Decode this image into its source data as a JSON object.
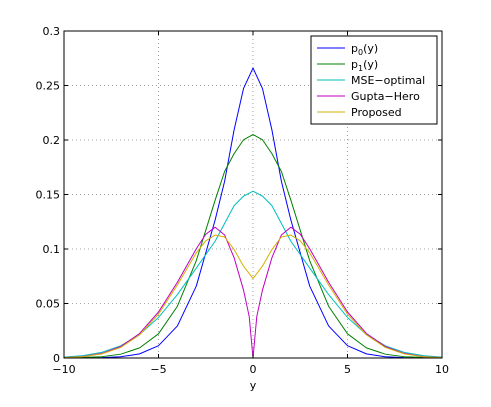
{
  "chart_data": {
    "type": "line",
    "title": "",
    "xlabel": "y",
    "ylabel": "",
    "xlim": [
      -10,
      10
    ],
    "ylim": [
      0,
      0.3
    ],
    "grid": true,
    "grid_style": "dotted",
    "legend_position": "top-right",
    "x_ticks": [
      {
        "value": -10,
        "label": "−10"
      },
      {
        "value": -5,
        "label": "−5"
      },
      {
        "value": 0,
        "label": "0"
      },
      {
        "value": 5,
        "label": "5"
      },
      {
        "value": 10,
        "label": "10"
      }
    ],
    "y_ticks": [
      {
        "value": 0,
        "label": "0"
      },
      {
        "value": 0.05,
        "label": "0.05"
      },
      {
        "value": 0.1,
        "label": "0.1"
      },
      {
        "value": 0.15,
        "label": "0.15"
      },
      {
        "value": 0.2,
        "label": "0.2"
      },
      {
        "value": 0.25,
        "label": "0.25"
      },
      {
        "value": 0.3,
        "label": "0.3"
      }
    ],
    "series": [
      {
        "name": "p0(y)",
        "label_main": "p",
        "label_sub": "0",
        "label_tail": "(y)",
        "color": "#0000ff",
        "x": [
          -10,
          -8,
          -7,
          -6,
          -5,
          -4,
          -3,
          -2,
          -1.5,
          -1,
          -0.5,
          0,
          0.5,
          1,
          1.5,
          2,
          3,
          4,
          5,
          6,
          7,
          8,
          10
        ],
        "y": [
          0,
          0.0003,
          0.0011,
          0.0038,
          0.0113,
          0.0294,
          0.066,
          0.1268,
          0.1623,
          0.2093,
          0.2473,
          0.266,
          0.2473,
          0.2093,
          0.1623,
          0.1268,
          0.066,
          0.0294,
          0.0113,
          0.0038,
          0.0011,
          0.0003,
          0
        ]
      },
      {
        "name": "p1(y)",
        "label_main": "p",
        "label_sub": "1",
        "label_tail": "(y)",
        "color": "#008000",
        "x": [
          -10,
          -8,
          -7,
          -6,
          -5,
          -4,
          -3,
          -2,
          -1.5,
          -1,
          -0.5,
          0,
          0.5,
          1,
          1.5,
          2,
          3,
          4,
          5,
          6,
          7,
          8,
          10
        ],
        "y": [
          0,
          0.0012,
          0.0035,
          0.0093,
          0.0222,
          0.0475,
          0.0893,
          0.145,
          0.1712,
          0.1875,
          0.2002,
          0.205,
          0.2002,
          0.1875,
          0.1712,
          0.145,
          0.0893,
          0.0475,
          0.0222,
          0.0093,
          0.0035,
          0.0012,
          0
        ]
      },
      {
        "name": "MSE−optimal",
        "label_main": "MSE−optimal",
        "label_sub": "",
        "label_tail": "",
        "color": "#00bfbf",
        "x": [
          -10,
          -9,
          -8,
          -7,
          -6,
          -5,
          -4,
          -3,
          -2,
          -1,
          -0.5,
          0,
          0.5,
          1,
          2,
          3,
          4,
          5,
          6,
          7,
          8,
          9,
          10
        ],
        "y": [
          0.0008,
          0.0022,
          0.0052,
          0.0112,
          0.0215,
          0.0372,
          0.0582,
          0.0825,
          0.1072,
          0.1398,
          0.1485,
          0.153,
          0.1485,
          0.1398,
          0.1072,
          0.0825,
          0.0582,
          0.0372,
          0.0215,
          0.0112,
          0.0052,
          0.0022,
          0.0008
        ]
      },
      {
        "name": "Gupta−Hero",
        "label_main": "Gupta−Hero",
        "label_sub": "",
        "label_tail": "",
        "color": "#bf00bf",
        "x": [
          -10,
          -9,
          -8,
          -7,
          -6,
          -5,
          -4,
          -3,
          -2.5,
          -2,
          -1.5,
          -1,
          -0.5,
          -0.2,
          0,
          0.2,
          0.5,
          1,
          1.5,
          2,
          2.5,
          3,
          4,
          5,
          6,
          7,
          8,
          9,
          10
        ],
        "y": [
          0.0003,
          0.0013,
          0.0042,
          0.0105,
          0.0225,
          0.0422,
          0.0695,
          0.1002,
          0.1135,
          0.12,
          0.1128,
          0.092,
          0.0622,
          0.038,
          0.0,
          0.038,
          0.0622,
          0.092,
          0.1128,
          0.12,
          0.1135,
          0.1002,
          0.0695,
          0.0422,
          0.0225,
          0.0105,
          0.0042,
          0.0013,
          0.0003
        ]
      },
      {
        "name": "Proposed",
        "label_main": "Proposed",
        "label_sub": "",
        "label_tail": "",
        "color": "#d4b000",
        "x": [
          -10,
          -9,
          -8,
          -7,
          -6,
          -5,
          -4,
          -3,
          -2.5,
          -2,
          -1.5,
          -1,
          -0.5,
          0,
          0.5,
          1,
          1.5,
          2,
          2.5,
          3,
          4,
          5,
          6,
          7,
          8,
          9,
          10
        ],
        "y": [
          0.0003,
          0.0012,
          0.0038,
          0.0097,
          0.0212,
          0.0402,
          0.067,
          0.0965,
          0.1075,
          0.1128,
          0.111,
          0.0995,
          0.0842,
          0.073,
          0.0842,
          0.0995,
          0.111,
          0.1128,
          0.1075,
          0.0965,
          0.067,
          0.0402,
          0.0212,
          0.0097,
          0.0038,
          0.0012,
          0.0003
        ]
      }
    ]
  }
}
